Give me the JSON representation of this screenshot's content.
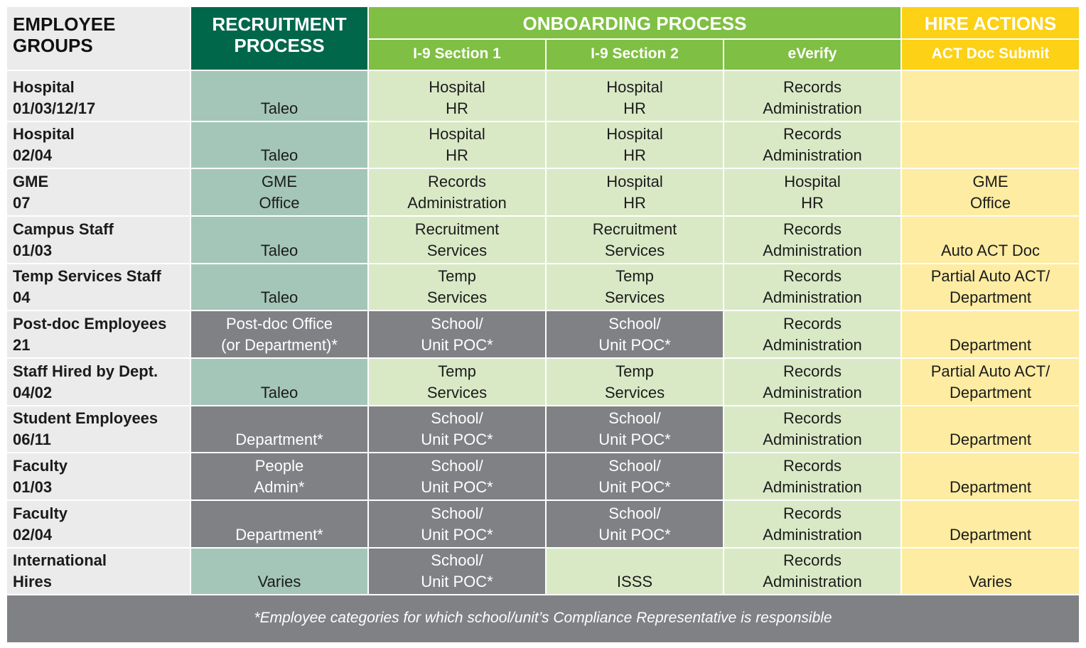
{
  "header": {
    "employee_groups": [
      "EMPLOYEE",
      "GROUPS"
    ],
    "recruitment": [
      "RECRUITMENT",
      "PROCESS"
    ],
    "onboarding": "ONBOARDING PROCESS",
    "hire_actions": "HIRE ACTIONS",
    "sub": [
      "I-9 Section 1",
      "I-9 Section 2",
      "eVerify",
      "ACT Doc Submit"
    ]
  },
  "colors": {
    "dark_green": "#00674a",
    "green": "#7fbf43",
    "yellow": "#fcd116",
    "teal": "#a4c6b9",
    "light_green": "#d9e9c6",
    "gray": "#808184",
    "light_yellow": "#fdeca2",
    "group_bg": "#ebebeb"
  },
  "rows": [
    {
      "group": [
        "Hospital",
        "01/03/12/17"
      ],
      "cells": [
        {
          "t": "teal",
          "l": [
            "",
            "Taleo"
          ]
        },
        {
          "t": "green",
          "l": [
            "Hospital",
            "HR"
          ]
        },
        {
          "t": "green",
          "l": [
            "Hospital",
            "HR"
          ]
        },
        {
          "t": "green",
          "l": [
            "Records",
            "Administration"
          ]
        },
        {
          "t": "yellow",
          "l": [
            "",
            ""
          ]
        }
      ]
    },
    {
      "group": [
        "Hospital",
        "02/04"
      ],
      "cells": [
        {
          "t": "teal",
          "l": [
            "",
            "Taleo"
          ]
        },
        {
          "t": "green",
          "l": [
            "Hospital",
            "HR"
          ]
        },
        {
          "t": "green",
          "l": [
            "Hospital",
            "HR"
          ]
        },
        {
          "t": "green",
          "l": [
            "Records",
            "Administration"
          ]
        },
        {
          "t": "yellow",
          "l": [
            "",
            ""
          ]
        }
      ]
    },
    {
      "group": [
        "GME",
        "07"
      ],
      "cells": [
        {
          "t": "teal",
          "l": [
            "GME",
            "Office"
          ]
        },
        {
          "t": "green",
          "l": [
            "Records",
            "Administration"
          ]
        },
        {
          "t": "green",
          "l": [
            "Hospital",
            "HR"
          ]
        },
        {
          "t": "green",
          "l": [
            "Hospital",
            "HR"
          ]
        },
        {
          "t": "yellow",
          "l": [
            "GME",
            "Office"
          ]
        }
      ]
    },
    {
      "group": [
        "Campus Staff",
        "01/03"
      ],
      "cells": [
        {
          "t": "teal",
          "l": [
            "",
            "Taleo"
          ]
        },
        {
          "t": "green",
          "l": [
            "Recruitment",
            "Services"
          ]
        },
        {
          "t": "green",
          "l": [
            "Recruitment",
            "Services"
          ]
        },
        {
          "t": "green",
          "l": [
            "Records",
            "Administration"
          ]
        },
        {
          "t": "yellow",
          "l": [
            "",
            "Auto ACT Doc"
          ]
        }
      ]
    },
    {
      "group": [
        "Temp Services Staff",
        "04"
      ],
      "cells": [
        {
          "t": "teal",
          "l": [
            "",
            "Taleo"
          ]
        },
        {
          "t": "green",
          "l": [
            "Temp",
            "Services"
          ]
        },
        {
          "t": "green",
          "l": [
            "Temp",
            "Services"
          ]
        },
        {
          "t": "green",
          "l": [
            "Records",
            "Administration"
          ]
        },
        {
          "t": "yellow",
          "l": [
            "Partial Auto ACT/",
            "Department"
          ]
        }
      ]
    },
    {
      "group": [
        "Post-doc Employees",
        "21"
      ],
      "cells": [
        {
          "t": "gray",
          "l": [
            "Post-doc Office",
            "(or Department)*"
          ]
        },
        {
          "t": "gray",
          "l": [
            "School/",
            "Unit POC*"
          ]
        },
        {
          "t": "gray",
          "l": [
            "School/",
            "Unit POC*"
          ]
        },
        {
          "t": "green",
          "l": [
            "Records",
            "Administration"
          ]
        },
        {
          "t": "yellow",
          "l": [
            "",
            "Department"
          ]
        }
      ]
    },
    {
      "group": [
        "Staff Hired by Dept.",
        "04/02"
      ],
      "cells": [
        {
          "t": "teal",
          "l": [
            "",
            "Taleo"
          ]
        },
        {
          "t": "green",
          "l": [
            "Temp",
            "Services"
          ]
        },
        {
          "t": "green",
          "l": [
            "Temp",
            "Services"
          ]
        },
        {
          "t": "green",
          "l": [
            "Records",
            "Administration"
          ]
        },
        {
          "t": "yellow",
          "l": [
            "Partial Auto ACT/",
            "Department"
          ]
        }
      ]
    },
    {
      "group": [
        "Student Employees",
        "06/11"
      ],
      "cells": [
        {
          "t": "gray",
          "l": [
            "",
            "Department*"
          ]
        },
        {
          "t": "gray",
          "l": [
            "School/",
            "Unit POC*"
          ]
        },
        {
          "t": "gray",
          "l": [
            "School/",
            "Unit POC*"
          ]
        },
        {
          "t": "green",
          "l": [
            "Records",
            "Administration"
          ]
        },
        {
          "t": "yellow",
          "l": [
            "",
            "Department"
          ]
        }
      ]
    },
    {
      "group": [
        "Faculty",
        "01/03"
      ],
      "cells": [
        {
          "t": "gray",
          "l": [
            "People",
            "Admin*"
          ]
        },
        {
          "t": "gray",
          "l": [
            "School/",
            "Unit POC*"
          ]
        },
        {
          "t": "gray",
          "l": [
            "School/",
            "Unit POC*"
          ]
        },
        {
          "t": "green",
          "l": [
            "Records",
            "Administration"
          ]
        },
        {
          "t": "yellow",
          "l": [
            "",
            "Department"
          ]
        }
      ]
    },
    {
      "group": [
        "Faculty",
        "02/04"
      ],
      "cells": [
        {
          "t": "gray",
          "l": [
            "",
            "Department*"
          ]
        },
        {
          "t": "gray",
          "l": [
            "School/",
            "Unit POC*"
          ]
        },
        {
          "t": "gray",
          "l": [
            "School/",
            "Unit POC*"
          ]
        },
        {
          "t": "green",
          "l": [
            "Records",
            "Administration"
          ]
        },
        {
          "t": "yellow",
          "l": [
            "",
            "Department"
          ]
        }
      ]
    },
    {
      "group": [
        "International",
        "Hires"
      ],
      "cells": [
        {
          "t": "teal",
          "l": [
            "",
            "Varies"
          ]
        },
        {
          "t": "gray",
          "l": [
            "School/",
            "Unit POC*"
          ]
        },
        {
          "t": "green",
          "l": [
            "",
            "ISSS"
          ]
        },
        {
          "t": "green",
          "l": [
            "Records",
            "Administration"
          ]
        },
        {
          "t": "yellow",
          "l": [
            "",
            "Varies"
          ]
        }
      ]
    }
  ],
  "footer": "*Employee categories for which school/unit’s Compliance Representative is responsible"
}
